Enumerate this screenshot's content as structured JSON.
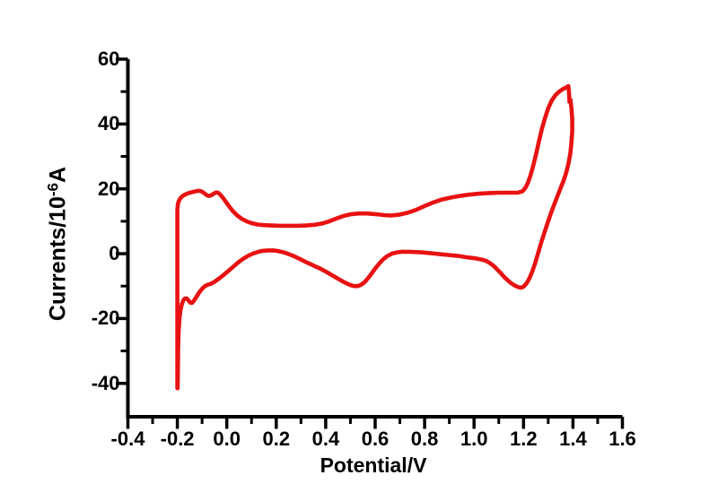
{
  "chart_data": {
    "type": "line",
    "title": "",
    "xlabel": "Potential/V",
    "ylabel": {
      "prefix": "Currents/10",
      "superscript": "-6",
      "suffix": "A"
    },
    "xlim": [
      -0.4,
      1.6
    ],
    "ylim": [
      -50.3,
      60
    ],
    "grid": false,
    "legend": null,
    "background_color": "#ffffff",
    "axis_color": "#000000",
    "x_major_ticks": [
      {
        "value": -0.4,
        "label": "-0.4"
      },
      {
        "value": -0.2,
        "label": "-0.2"
      },
      {
        "value": 0.0,
        "label": "0.0"
      },
      {
        "value": 0.2,
        "label": "0.2"
      },
      {
        "value": 0.4,
        "label": "0.4"
      },
      {
        "value": 0.6,
        "label": "0.6"
      },
      {
        "value": 0.8,
        "label": "0.8"
      },
      {
        "value": 1.0,
        "label": "1.0"
      },
      {
        "value": 1.2,
        "label": "1.2"
      },
      {
        "value": 1.4,
        "label": "1.4"
      },
      {
        "value": 1.6,
        "label": "1.6"
      }
    ],
    "x_minor_ticks": [
      -0.3,
      -0.1,
      0.1,
      0.3,
      0.5,
      0.7,
      0.9,
      1.1,
      1.3,
      1.5
    ],
    "y_major_ticks": [
      {
        "value": 60,
        "label": "60"
      },
      {
        "value": 40,
        "label": "40"
      },
      {
        "value": 20,
        "label": "20"
      },
      {
        "value": 0,
        "label": "0"
      },
      {
        "value": -20,
        "label": "-20"
      },
      {
        "value": -40,
        "label": "-40"
      }
    ],
    "y_minor_ticks": [
      50,
      30,
      10,
      -10,
      -30
    ],
    "series": [
      {
        "name": "cyclic-voltammogram",
        "color": "#e81212",
        "line_width": 4.6,
        "points": [
          [
            -0.2,
            -41.5
          ],
          [
            -0.2,
            13.5
          ],
          [
            -0.198,
            15.3
          ],
          [
            -0.194,
            16.3
          ],
          [
            -0.188,
            17.1
          ],
          [
            -0.18,
            17.7
          ],
          [
            -0.17,
            18.2
          ],
          [
            -0.158,
            18.6
          ],
          [
            -0.146,
            18.9
          ],
          [
            -0.134,
            19.1
          ],
          [
            -0.122,
            19.3
          ],
          [
            -0.112,
            19.4
          ],
          [
            -0.102,
            19.2
          ],
          [
            -0.092,
            18.7
          ],
          [
            -0.082,
            18.1
          ],
          [
            -0.073,
            17.8
          ],
          [
            -0.063,
            18.0
          ],
          [
            -0.053,
            18.5
          ],
          [
            -0.044,
            18.9
          ],
          [
            -0.035,
            18.8
          ],
          [
            -0.025,
            18.1
          ],
          [
            -0.014,
            17.1
          ],
          [
            -0.003,
            15.9
          ],
          [
            0.01,
            14.5
          ],
          [
            0.025,
            13.1
          ],
          [
            0.042,
            11.8
          ],
          [
            0.06,
            10.8
          ],
          [
            0.08,
            10.0
          ],
          [
            0.1,
            9.4
          ],
          [
            0.125,
            9.0
          ],
          [
            0.15,
            8.8
          ],
          [
            0.18,
            8.7
          ],
          [
            0.215,
            8.6
          ],
          [
            0.25,
            8.6
          ],
          [
            0.285,
            8.6
          ],
          [
            0.32,
            8.7
          ],
          [
            0.355,
            8.9
          ],
          [
            0.385,
            9.3
          ],
          [
            0.415,
            10.0
          ],
          [
            0.445,
            10.9
          ],
          [
            0.475,
            11.7
          ],
          [
            0.505,
            12.2
          ],
          [
            0.535,
            12.4
          ],
          [
            0.565,
            12.4
          ],
          [
            0.6,
            12.2
          ],
          [
            0.635,
            11.9
          ],
          [
            0.665,
            11.8
          ],
          [
            0.695,
            12.0
          ],
          [
            0.73,
            12.6
          ],
          [
            0.765,
            13.5
          ],
          [
            0.8,
            14.7
          ],
          [
            0.835,
            15.8
          ],
          [
            0.87,
            16.7
          ],
          [
            0.905,
            17.3
          ],
          [
            0.94,
            17.8
          ],
          [
            0.98,
            18.2
          ],
          [
            1.02,
            18.5
          ],
          [
            1.06,
            18.7
          ],
          [
            1.1,
            18.8
          ],
          [
            1.14,
            18.8
          ],
          [
            1.175,
            18.8
          ],
          [
            1.195,
            19.2
          ],
          [
            1.207,
            20.2
          ],
          [
            1.218,
            21.9
          ],
          [
            1.229,
            24.3
          ],
          [
            1.24,
            27.3
          ],
          [
            1.251,
            30.8
          ],
          [
            1.262,
            34.6
          ],
          [
            1.274,
            38.4
          ],
          [
            1.287,
            41.9
          ],
          [
            1.3,
            44.9
          ],
          [
            1.314,
            47.2
          ],
          [
            1.328,
            48.8
          ],
          [
            1.343,
            49.9
          ],
          [
            1.358,
            50.7
          ],
          [
            1.371,
            51.2
          ],
          [
            1.381,
            51.7
          ],
          [
            1.384,
            49.8
          ],
          [
            1.386,
            46.8
          ],
          [
            1.39,
            47.5
          ],
          [
            1.394,
            44.8
          ],
          [
            1.397,
            41.5
          ],
          [
            1.397,
            38.0
          ],
          [
            1.394,
            34.2
          ],
          [
            1.389,
            30.8
          ],
          [
            1.382,
            27.8
          ],
          [
            1.373,
            25.1
          ],
          [
            1.363,
            22.7
          ],
          [
            1.351,
            20.4
          ],
          [
            1.338,
            17.9
          ],
          [
            1.325,
            15.3
          ],
          [
            1.311,
            12.5
          ],
          [
            1.298,
            9.6
          ],
          [
            1.285,
            6.6
          ],
          [
            1.272,
            3.5
          ],
          [
            1.26,
            0.4
          ],
          [
            1.248,
            -2.7
          ],
          [
            1.236,
            -5.4
          ],
          [
            1.224,
            -7.6
          ],
          [
            1.212,
            -9.2
          ],
          [
            1.2,
            -10.2
          ],
          [
            1.19,
            -10.5
          ],
          [
            1.178,
            -10.3
          ],
          [
            1.164,
            -9.8
          ],
          [
            1.15,
            -9.1
          ],
          [
            1.136,
            -8.2
          ],
          [
            1.122,
            -7.2
          ],
          [
            1.108,
            -6.0
          ],
          [
            1.094,
            -4.9
          ],
          [
            1.08,
            -3.8
          ],
          [
            1.064,
            -2.9
          ],
          [
            1.048,
            -2.2
          ],
          [
            1.03,
            -1.8
          ],
          [
            1.01,
            -1.5
          ],
          [
            0.99,
            -1.3
          ],
          [
            0.968,
            -1.1
          ],
          [
            0.945,
            -0.8
          ],
          [
            0.921,
            -0.6
          ],
          [
            0.896,
            -0.4
          ],
          [
            0.87,
            -0.2
          ],
          [
            0.843,
            0.0
          ],
          [
            0.816,
            0.2
          ],
          [
            0.789,
            0.4
          ],
          [
            0.762,
            0.5
          ],
          [
            0.735,
            0.6
          ],
          [
            0.71,
            0.6
          ],
          [
            0.688,
            0.4
          ],
          [
            0.668,
            0.0
          ],
          [
            0.65,
            -0.7
          ],
          [
            0.633,
            -1.7
          ],
          [
            0.617,
            -3.0
          ],
          [
            0.601,
            -4.5
          ],
          [
            0.586,
            -6.1
          ],
          [
            0.571,
            -7.6
          ],
          [
            0.557,
            -8.8
          ],
          [
            0.543,
            -9.6
          ],
          [
            0.529,
            -10.0
          ],
          [
            0.515,
            -10.0
          ],
          [
            0.5,
            -9.7
          ],
          [
            0.483,
            -9.1
          ],
          [
            0.465,
            -8.4
          ],
          [
            0.447,
            -7.6
          ],
          [
            0.429,
            -6.8
          ],
          [
            0.411,
            -6.0
          ],
          [
            0.393,
            -5.2
          ],
          [
            0.375,
            -4.5
          ],
          [
            0.357,
            -3.9
          ],
          [
            0.338,
            -3.2
          ],
          [
            0.318,
            -2.5
          ],
          [
            0.297,
            -1.7
          ],
          [
            0.275,
            -0.9
          ],
          [
            0.253,
            -0.2
          ],
          [
            0.231,
            0.4
          ],
          [
            0.209,
            0.8
          ],
          [
            0.188,
            1.0
          ],
          [
            0.168,
            1.0
          ],
          [
            0.148,
            0.9
          ],
          [
            0.128,
            0.6
          ],
          [
            0.108,
            0.1
          ],
          [
            0.088,
            -0.6
          ],
          [
            0.068,
            -1.5
          ],
          [
            0.048,
            -2.6
          ],
          [
            0.028,
            -3.9
          ],
          [
            0.008,
            -5.2
          ],
          [
            -0.012,
            -6.5
          ],
          [
            -0.032,
            -7.7
          ],
          [
            -0.05,
            -8.7
          ],
          [
            -0.065,
            -9.3
          ],
          [
            -0.078,
            -9.6
          ],
          [
            -0.09,
            -10.1
          ],
          [
            -0.101,
            -10.9
          ],
          [
            -0.111,
            -11.9
          ],
          [
            -0.121,
            -13.1
          ],
          [
            -0.131,
            -14.3
          ],
          [
            -0.14,
            -15.2
          ],
          [
            -0.148,
            -15.1
          ],
          [
            -0.155,
            -14.4
          ],
          [
            -0.162,
            -13.8
          ],
          [
            -0.169,
            -13.8
          ],
          [
            -0.176,
            -14.4
          ],
          [
            -0.182,
            -15.6
          ],
          [
            -0.187,
            -17.3
          ],
          [
            -0.191,
            -19.6
          ],
          [
            -0.194,
            -22.6
          ],
          [
            -0.196,
            -26.4
          ],
          [
            -0.197,
            -30.8
          ],
          [
            -0.198,
            -35.8
          ],
          [
            -0.199,
            -41.5
          ]
        ]
      }
    ]
  }
}
